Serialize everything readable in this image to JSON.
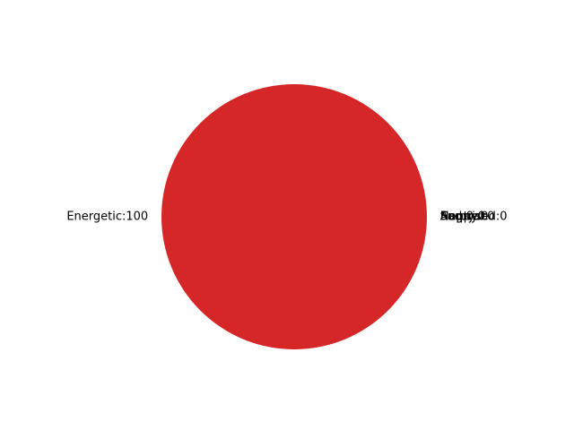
{
  "chart_data": {
    "type": "pie",
    "title": "",
    "labels": [
      "Neutral",
      "Angry",
      "Sad",
      "Energetic",
      "Happy",
      "Surprised"
    ],
    "values": [
      0,
      0,
      0,
      100,
      0,
      0
    ],
    "label_format": "{label}:{value}",
    "display_labels": [
      "Neutral:0",
      "Angry:0",
      "Sad:0",
      "Energetic:100",
      "Happy:0",
      "Surprised:0"
    ],
    "colors": [
      "#1f77b4",
      "#ff7f0e",
      "#2ca02c",
      "#d62728",
      "#9467bd",
      "#8c564b"
    ],
    "slice_colors": {
      "Energetic": "#2ca02c"
    },
    "legend": "none"
  }
}
